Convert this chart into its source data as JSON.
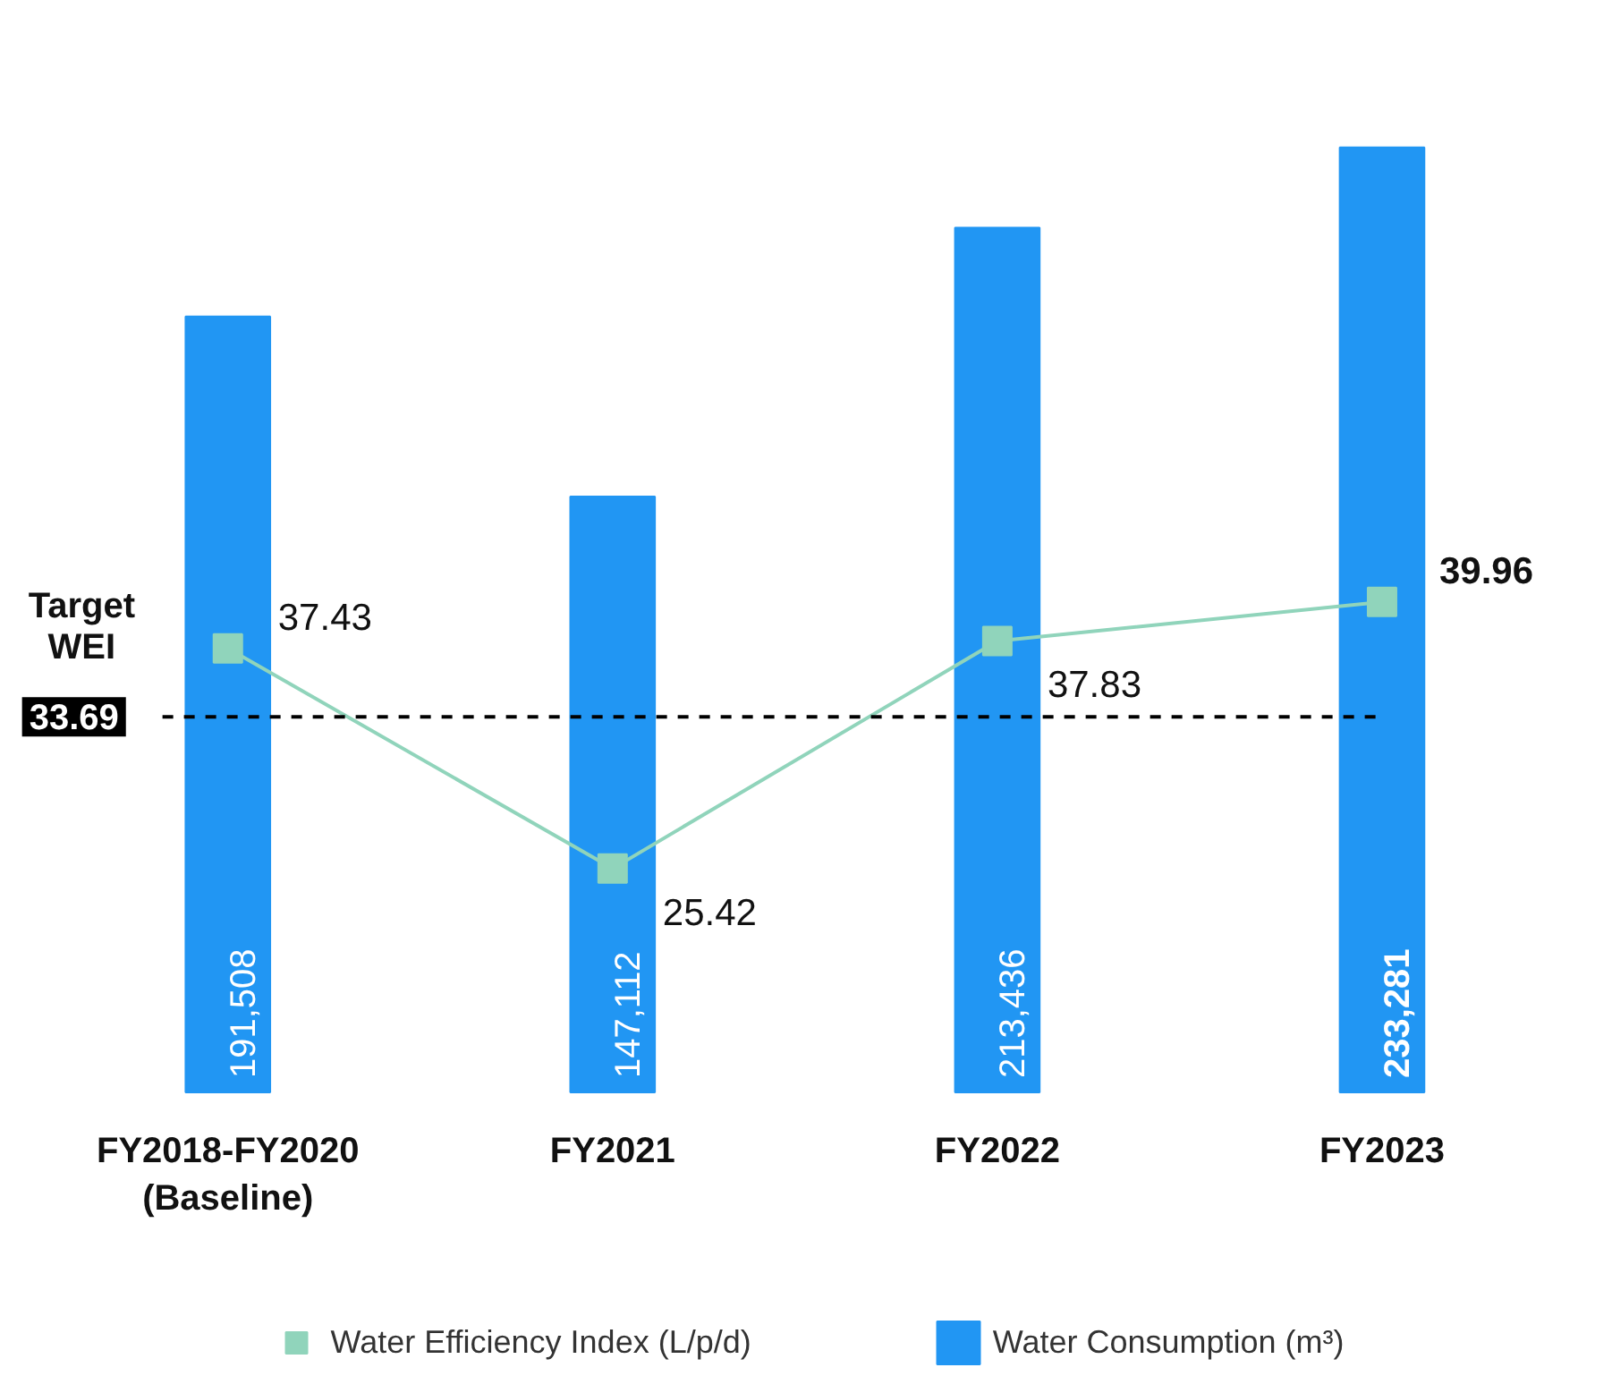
{
  "chart_data": {
    "type": "bar",
    "categories": [
      "FY2018-FY2020\n(Baseline)",
      "FY2021",
      "FY2022",
      "FY2023"
    ],
    "series": [
      {
        "name": "Water Consumption (m³)",
        "color": "#2196f3",
        "values": [
          191508,
          147112,
          213436,
          233281
        ],
        "value_labels": [
          "191,508",
          "147,112",
          "213,436",
          "233,281"
        ]
      },
      {
        "name": "Water Efficiency Index (L/p/d)",
        "type": "line",
        "axis": "y2",
        "color": "#90d4bb",
        "marker": "square",
        "values": [
          37.43,
          25.42,
          37.83,
          39.96
        ]
      }
    ],
    "ref_lines": [
      {
        "axis": "y2",
        "value": 33.69,
        "label": "33.69",
        "color": "#000000",
        "line_style": "dashed"
      }
    ],
    "annotations": [
      "Target\nWEI"
    ],
    "data_labels": true,
    "grid": false,
    "legend": "bottom",
    "tick_labels": "x"
  }
}
